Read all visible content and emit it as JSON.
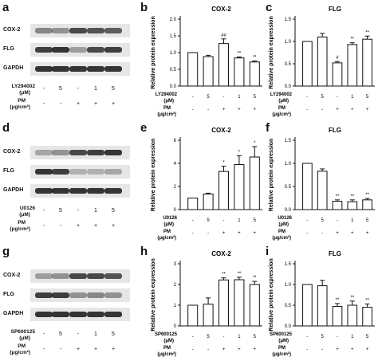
{
  "panel_letters": [
    "a",
    "b",
    "c",
    "d",
    "e",
    "f",
    "g",
    "h",
    "i"
  ],
  "blots": [
    {
      "letter": "a",
      "proteins": [
        "COX-2",
        "FLG",
        "GAPDH"
      ],
      "inhibitor_label": "LY294002",
      "inhibitor_unit": "(μM)",
      "inhibitor_values": [
        "-",
        "5",
        "-",
        "1",
        "5"
      ],
      "pm_label": "PM",
      "pm_unit": "(μg/cm²)",
      "pm_values": [
        "-",
        "-",
        "+",
        "+",
        "+"
      ]
    },
    {
      "letter": "d",
      "proteins": [
        "COX-2",
        "FLG",
        "GAPDH"
      ],
      "inhibitor_label": "U0126",
      "inhibitor_unit": "(μM)",
      "inhibitor_values": [
        "-",
        "5",
        "-",
        "1",
        "5"
      ],
      "pm_label": "PM",
      "pm_unit": "(μg/cm²)",
      "pm_values": [
        "-",
        "-",
        "+",
        "+",
        "+"
      ]
    },
    {
      "letter": "g",
      "proteins": [
        "COX-2",
        "FLG",
        "GAPDH"
      ],
      "inhibitor_label": "SP600125",
      "inhibitor_unit": "(μM)",
      "inhibitor_values": [
        "-",
        "5",
        "-",
        "1",
        "5"
      ],
      "pm_label": "PM",
      "pm_unit": "(μg/cm²)",
      "pm_values": [
        "-",
        "-",
        "+",
        "+",
        "+"
      ]
    }
  ],
  "chart_data": [
    {
      "letter": "b",
      "type": "bar",
      "title": "COX-2",
      "ylabel": "Relative protein expression",
      "ylim": [
        0,
        2.0
      ],
      "yticks": [
        "0.0",
        "0.5",
        "1.0",
        "1.5",
        "2.0"
      ],
      "values": [
        1.0,
        0.88,
        1.27,
        0.84,
        0.72
      ],
      "errors": [
        0.0,
        0.04,
        0.14,
        0.03,
        0.03
      ],
      "annotations": [
        "",
        "",
        "##",
        "**",
        "**"
      ],
      "inhibitor_label": "LY294002",
      "inhibitor_unit": "(μM)",
      "inhibitor_values": [
        "-",
        "5",
        "-",
        "1",
        "5"
      ],
      "pm_label": "PM",
      "pm_unit": "(μg/cm²)",
      "pm_values": [
        "-",
        "-",
        "+",
        "+",
        "+"
      ]
    },
    {
      "letter": "c",
      "type": "bar",
      "title": "FLG",
      "ylabel": "Relative protein expression",
      "ylim": [
        0,
        1.5
      ],
      "yticks": [
        "0.0",
        "0.5",
        "1.0",
        "1.5"
      ],
      "values": [
        1.0,
        1.1,
        0.52,
        0.93,
        1.05
      ],
      "errors": [
        0.0,
        0.08,
        0.03,
        0.04,
        0.07
      ],
      "annotations": [
        "",
        "",
        "#",
        "**",
        "**"
      ],
      "inhibitor_label": "LY294002",
      "inhibitor_unit": "(μM)",
      "inhibitor_values": [
        "-",
        "5",
        "-",
        "1",
        "5"
      ],
      "pm_label": "PM",
      "pm_unit": "(μg/cm²)",
      "pm_values": [
        "-",
        "-",
        "+",
        "+",
        "+"
      ]
    },
    {
      "letter": "e",
      "type": "bar",
      "title": "COX-2",
      "ylabel": "Relative protein expression",
      "ylim": [
        0,
        6
      ],
      "yticks": [
        "0",
        "2",
        "4",
        "6"
      ],
      "values": [
        1.0,
        1.35,
        3.3,
        3.9,
        4.55
      ],
      "errors": [
        0.0,
        0.07,
        0.45,
        0.75,
        0.9
      ],
      "annotations": [
        "",
        "",
        "*",
        "*",
        "*"
      ],
      "inhibitor_label": "U0126",
      "inhibitor_unit": "(μM)",
      "inhibitor_values": [
        "-",
        "5",
        "-",
        "1",
        "5"
      ],
      "pm_label": "PM",
      "pm_unit": "(μg/cm²)",
      "pm_values": [
        "-",
        "-",
        "+",
        "+",
        "+"
      ]
    },
    {
      "letter": "f",
      "type": "bar",
      "title": "FLG",
      "ylabel": "Relative protein expression",
      "ylim": [
        0,
        1.5
      ],
      "yticks": [
        "0.0",
        "0.5",
        "1.0",
        "1.5"
      ],
      "values": [
        1.0,
        0.83,
        0.18,
        0.17,
        0.21
      ],
      "errors": [
        0.0,
        0.05,
        0.03,
        0.04,
        0.03
      ],
      "annotations": [
        "",
        "",
        "**",
        "**",
        "**"
      ],
      "inhibitor_label": "U0126",
      "inhibitor_unit": "(μM)",
      "inhibitor_values": [
        "-",
        "5",
        "-",
        "1",
        "5"
      ],
      "pm_label": "PM",
      "pm_unit": "(μg/cm²)",
      "pm_values": [
        "-",
        "-",
        "+",
        "+",
        "+"
      ]
    },
    {
      "letter": "h",
      "type": "bar",
      "title": "COX-2",
      "ylabel": "Relative protein expression",
      "ylim": [
        0,
        3
      ],
      "yticks": [
        "0",
        "1",
        "2",
        "3"
      ],
      "values": [
        1.0,
        1.05,
        2.22,
        2.23,
        2.0
      ],
      "errors": [
        0.0,
        0.3,
        0.1,
        0.12,
        0.15
      ],
      "annotations": [
        "",
        "",
        "**",
        "**",
        "**"
      ],
      "inhibitor_label": "SP600125",
      "inhibitor_unit": "(μM)",
      "inhibitor_values": [
        "-",
        "5",
        "-",
        "1",
        "5"
      ],
      "pm_label": "PM",
      "pm_unit": "(μg/cm²)",
      "pm_values": [
        "-",
        "-",
        "+",
        "+",
        "+"
      ]
    },
    {
      "letter": "i",
      "type": "bar",
      "title": "FLG",
      "ylabel": "Relative protein expression",
      "ylim": [
        0,
        1.5
      ],
      "yticks": [
        "0.0",
        "0.5",
        "1.0",
        "1.5"
      ],
      "values": [
        1.0,
        0.97,
        0.47,
        0.5,
        0.45
      ],
      "errors": [
        0.0,
        0.13,
        0.07,
        0.1,
        0.08
      ],
      "annotations": [
        "",
        "",
        "**",
        "**",
        "**"
      ],
      "inhibitor_label": "SP600125",
      "inhibitor_unit": "(μM)",
      "inhibitor_values": [
        "-",
        "5",
        "-",
        "1",
        "5"
      ],
      "pm_label": "PM",
      "pm_unit": "(μg/cm²)",
      "pm_values": [
        "-",
        "-",
        "+",
        "+",
        "+"
      ]
    }
  ]
}
